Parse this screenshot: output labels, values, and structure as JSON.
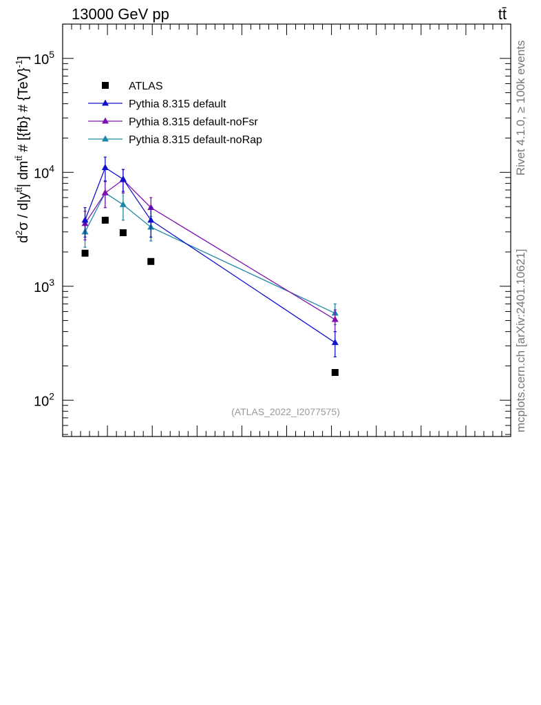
{
  "chart_data": {
    "type": "scatter",
    "title_left": "13000 GeV pp",
    "title_right": "tt̄",
    "ylabel": "d²σ / d|y^tt̄| dm^tt̄ # [{fb} # {TeV}⁻¹]",
    "ylabel_parts": {
      "p1": "d",
      "p1sup": "2",
      "p2": "σ / d|y",
      "p2sup": "tt̄",
      "p3": "| dm",
      "p3sup": "tt̄",
      "p4": " # [{fb} # {TeV}",
      "p4sup": "-1",
      "p5": "]"
    },
    "yscale": "log",
    "ylim": [
      48,
      200000
    ],
    "xlim": [
      0.0,
      1.0
    ],
    "yticks": [
      {
        "base": "10",
        "exp": "2",
        "value": 100
      },
      {
        "base": "10",
        "exp": "3",
        "value": 1000
      },
      {
        "base": "10",
        "exp": "4",
        "value": 10000
      },
      {
        "base": "10",
        "exp": "5",
        "value": 100000
      }
    ],
    "x": [
      0.05,
      0.095,
      0.135,
      0.197,
      0.608
    ],
    "series": [
      {
        "name": "ATLAS",
        "marker": "square",
        "color": "#000000",
        "line": false,
        "values": [
          1950,
          3800,
          2950,
          1650,
          175
        ],
        "errors": [
          0,
          0,
          0,
          0,
          0
        ]
      },
      {
        "name": "Pythia 8.315 default",
        "marker": "triangle",
        "color": "#1010cc",
        "line": true,
        "values": [
          3800,
          11000,
          8700,
          3800,
          320
        ],
        "errors": [
          1100,
          2600,
          1900,
          1100,
          80
        ]
      },
      {
        "name": "Pythia 8.315 default-noFsr",
        "marker": "triangle",
        "color": "#7f10b0",
        "line": true,
        "values": [
          3550,
          6600,
          8600,
          4900,
          510
        ],
        "errors": [
          1000,
          1700,
          2000,
          1100,
          110
        ]
      },
      {
        "name": "Pythia 8.315 default-noRap",
        "marker": "triangle",
        "color": "#1a86a8",
        "line": true,
        "values": [
          3000,
          6600,
          5200,
          3300,
          580
        ],
        "errors": [
          800,
          1700,
          1400,
          800,
          120
        ]
      }
    ],
    "annotation": "(ATLAS_2022_I2077575)",
    "side_label_top": "Rivet 4.1.0, ≥ 100k events",
    "side_label_bottom": "mcplots.cern.ch [arXiv:2401.10621]"
  }
}
